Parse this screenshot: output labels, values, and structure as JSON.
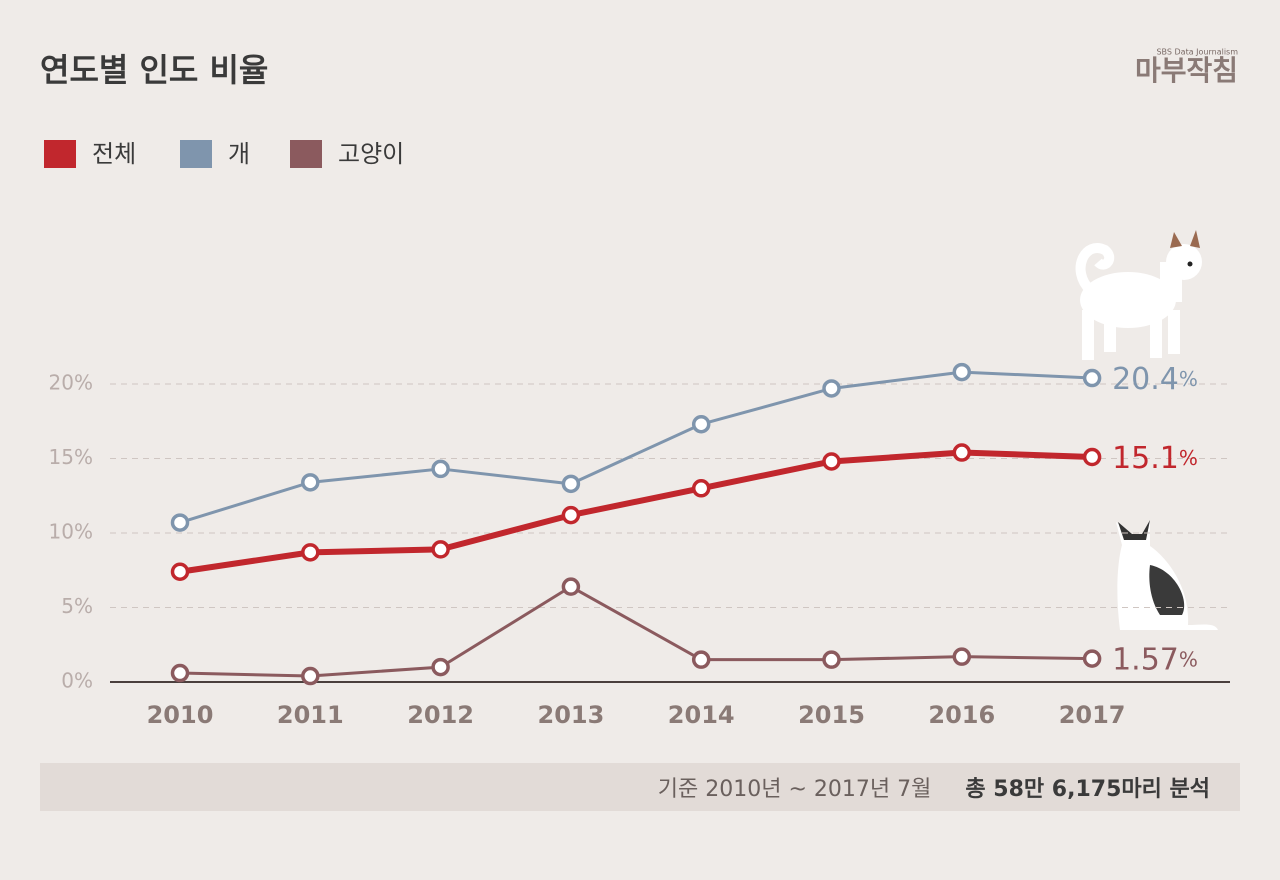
{
  "chart_data": {
    "type": "line",
    "title": "연도별 인도 비율",
    "brand": "마부작침",
    "brand_subtitle": "SBS Data Journalism",
    "categories": [
      "2010",
      "2011",
      "2012",
      "2013",
      "2014",
      "2015",
      "2016",
      "2017"
    ],
    "series": [
      {
        "name": "전체",
        "color": "#c1272d",
        "values": [
          7.4,
          8.7,
          8.9,
          11.2,
          13.0,
          14.8,
          15.4,
          15.1
        ],
        "value_labels": [
          null,
          null,
          null,
          null,
          null,
          null,
          null,
          "15.1%"
        ]
      },
      {
        "name": "개",
        "color": "#7f95ad",
        "values": [
          10.7,
          13.4,
          14.3,
          13.3,
          17.3,
          19.7,
          20.8,
          20.4
        ],
        "value_labels": [
          null,
          null,
          null,
          null,
          null,
          null,
          null,
          "20.4%"
        ]
      },
      {
        "name": "고양이",
        "color": "#8b5a5e",
        "values": [
          0.6,
          0.4,
          1.0,
          6.4,
          1.5,
          1.5,
          1.7,
          1.57
        ],
        "value_labels": [
          null,
          null,
          null,
          null,
          null,
          null,
          null,
          "1.57%"
        ]
      }
    ],
    "ylim": [
      0,
      25
    ],
    "yticks": [
      {
        "value": 0,
        "label": "0%"
      },
      {
        "value": 5,
        "label": "5%"
      },
      {
        "value": 10,
        "label": "10%"
      },
      {
        "value": 15,
        "label": "15%"
      },
      {
        "value": 20,
        "label": "20%"
      }
    ],
    "grid": true,
    "footnote": "기준 2010년 ~ 2017년 7월",
    "footnote_bold": "총 58만 6,175마리 분석"
  }
}
